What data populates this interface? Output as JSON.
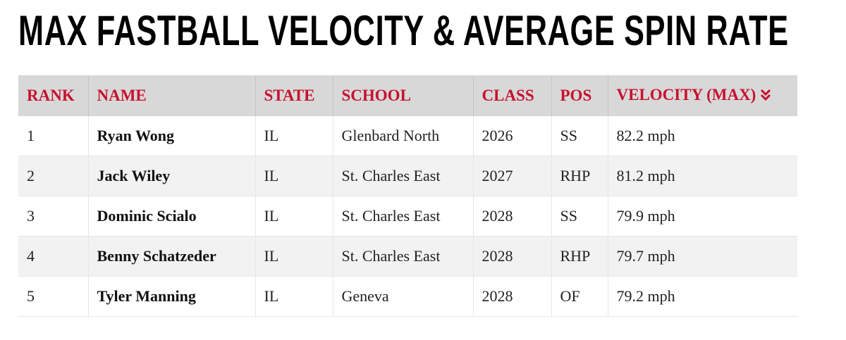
{
  "header": {
    "title": "MAX FASTBALL VELOCITY & AVERAGE SPIN RATE"
  },
  "table": {
    "headers": [
      "RANK",
      "NAME",
      "STATE",
      "SCHOOL",
      "CLASS",
      "POS",
      "VELOCITY (MAX)"
    ],
    "rows": [
      [
        "1",
        "Ryan Wong",
        "IL",
        "Glenbard North",
        "2026",
        "SS",
        "82.2 mph"
      ],
      [
        "2",
        "Jack Wiley",
        "IL",
        "St. Charles East",
        "2027",
        "RHP",
        "81.2 mph"
      ],
      [
        "3",
        "Dominic Scialo",
        "IL",
        "St. Charles East",
        "2028",
        "SS",
        "79.9 mph"
      ],
      [
        "4",
        "Benny Schatzeder",
        "IL",
        "St. Charles East",
        "2028",
        "RHP",
        "79.7 mph"
      ],
      [
        "5",
        "Tyler Manning",
        "IL",
        "Geneva",
        "2028",
        "OF",
        "79.2 mph"
      ]
    ]
  }
}
